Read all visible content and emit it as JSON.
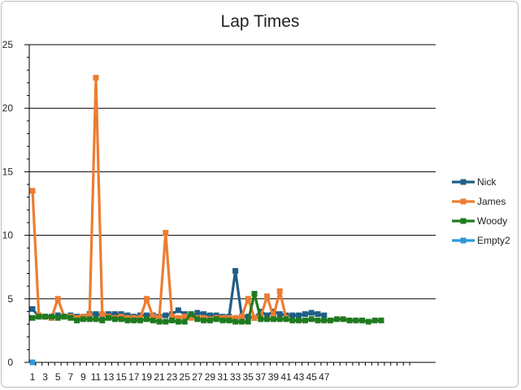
{
  "chart_data": {
    "type": "line",
    "title": "Lap Times",
    "xlabel": "",
    "ylabel": "",
    "ylim": [
      0,
      25
    ],
    "yticks": [
      0,
      5,
      10,
      15,
      20,
      25
    ],
    "xtick_labels": [
      "1",
      "3",
      "5",
      "7",
      "9",
      "11",
      "13",
      "15",
      "17",
      "19",
      "21",
      "23",
      "25",
      "27",
      "29",
      "31",
      "33",
      "35",
      "37",
      "39",
      "41",
      "43",
      "45",
      "47"
    ],
    "x_count": 60,
    "grid": true,
    "legend_position": "right",
    "series": [
      {
        "name": "Nick",
        "color": "#1f5f86",
        "marker": "square",
        "values": [
          4.2,
          3.6,
          3.6,
          3.5,
          3.7,
          3.6,
          3.7,
          3.6,
          3.6,
          3.8,
          3.8,
          3.7,
          3.8,
          3.8,
          3.8,
          3.7,
          3.6,
          3.7,
          3.7,
          3.7,
          3.6,
          3.7,
          3.8,
          4.1,
          3.8,
          3.6,
          3.9,
          3.8,
          3.7,
          3.7,
          3.6,
          3.6,
          7.2,
          3.6,
          3.6,
          3.5,
          4.0,
          3.7,
          4.0,
          3.8,
          3.7,
          3.7,
          3.7,
          3.8,
          3.9,
          3.8,
          3.7
        ]
      },
      {
        "name": "James",
        "color": "#ed7d31",
        "marker": "square",
        "values": [
          13.5,
          3.7,
          3.6,
          3.5,
          5.0,
          3.6,
          3.6,
          3.5,
          3.6,
          3.7,
          22.4,
          3.8,
          3.6,
          3.5,
          3.6,
          3.5,
          3.5,
          3.5,
          5.0,
          3.6,
          3.5,
          10.2,
          3.6,
          3.5,
          3.6,
          3.5,
          3.5,
          3.5,
          3.4,
          3.5,
          3.5,
          3.5,
          3.5,
          3.6,
          5.0,
          3.5,
          3.6,
          5.2,
          3.6,
          5.6,
          3.5
        ]
      },
      {
        "name": "Woody",
        "color": "#1f7a1f",
        "marker": "square",
        "values": [
          3.5,
          3.6,
          3.6,
          3.6,
          3.5,
          3.6,
          3.5,
          3.3,
          3.4,
          3.4,
          3.4,
          3.3,
          3.5,
          3.4,
          3.4,
          3.3,
          3.3,
          3.3,
          3.4,
          3.3,
          3.2,
          3.2,
          3.3,
          3.2,
          3.2,
          3.8,
          3.4,
          3.3,
          3.3,
          3.4,
          3.3,
          3.3,
          3.2,
          3.2,
          3.2,
          5.4,
          3.4,
          3.4,
          3.4,
          3.4,
          3.4,
          3.3,
          3.3,
          3.3,
          3.4,
          3.3,
          3.3,
          3.3,
          3.4,
          3.4,
          3.3,
          3.3,
          3.3,
          3.2,
          3.3,
          3.3
        ]
      },
      {
        "name": "Empty2",
        "color": "#2b9ad6",
        "marker": "square",
        "values": [
          0
        ]
      }
    ]
  }
}
